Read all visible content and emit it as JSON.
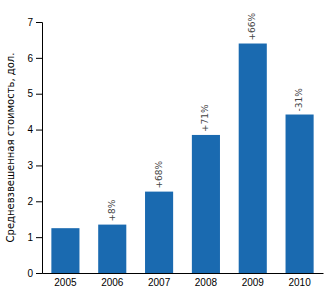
{
  "chart_data": {
    "type": "bar",
    "categories": [
      "2005",
      "2006",
      "2007",
      "2008",
      "2009",
      "2010"
    ],
    "values": [
      1.25,
      1.35,
      2.27,
      3.85,
      6.4,
      4.42
    ],
    "color": "#1a6ab0",
    "ylabel": "Средневзвешенная стоимость, дол.",
    "ylim": [
      0,
      7
    ],
    "yticks": [
      0,
      1,
      2,
      3,
      4,
      5,
      6,
      7
    ],
    "grid": false,
    "annotations": [
      {
        "x": "2006",
        "text": "+8%"
      },
      {
        "x": "2007",
        "text": "+68%"
      },
      {
        "x": "2008",
        "text": "+71%"
      },
      {
        "x": "2009",
        "text": "+66%"
      },
      {
        "x": "2010",
        "text": "-31%"
      }
    ]
  }
}
